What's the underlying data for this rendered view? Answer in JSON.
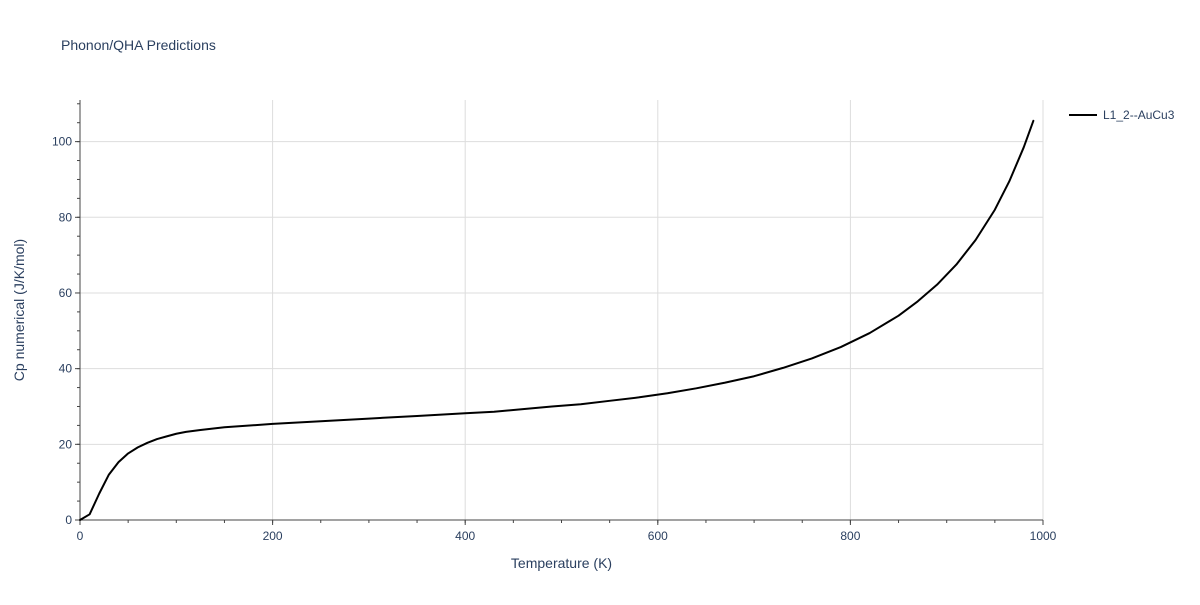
{
  "chart_data": {
    "type": "line",
    "title": "Phonon/QHA Predictions",
    "xlabel": "Temperature (K)",
    "ylabel": "Cp numerical (J/K/mol)",
    "xlim": [
      0,
      1000
    ],
    "ylim": [
      0,
      111
    ],
    "x_ticks": [
      0,
      200,
      400,
      600,
      800,
      1000
    ],
    "y_ticks": [
      0,
      20,
      40,
      60,
      80,
      100
    ],
    "grid": true,
    "legend_position": "top-right",
    "series": [
      {
        "name": "L1_2--AuCu3",
        "color": "#000000",
        "x": [
          0,
          10,
          20,
          30,
          40,
          50,
          60,
          70,
          80,
          90,
          100,
          110,
          125,
          150,
          200,
          250,
          300,
          350,
          400,
          430,
          460,
          490,
          520,
          550,
          580,
          610,
          640,
          670,
          700,
          730,
          760,
          790,
          820,
          850,
          870,
          890,
          910,
          930,
          950,
          965,
          980,
          990
        ],
        "values": [
          0,
          1.5,
          7,
          12,
          15.3,
          17.6,
          19.2,
          20.4,
          21.4,
          22.1,
          22.8,
          23.3,
          23.8,
          24.5,
          25.4,
          26.1,
          26.8,
          27.5,
          28.2,
          28.6,
          29.3,
          30,
          30.6,
          31.5,
          32.4,
          33.5,
          34.8,
          36.3,
          38,
          40.2,
          42.7,
          45.7,
          49.4,
          54,
          57.8,
          62.2,
          67.5,
          74,
          82,
          89.5,
          98.5,
          105.5
        ]
      }
    ]
  }
}
